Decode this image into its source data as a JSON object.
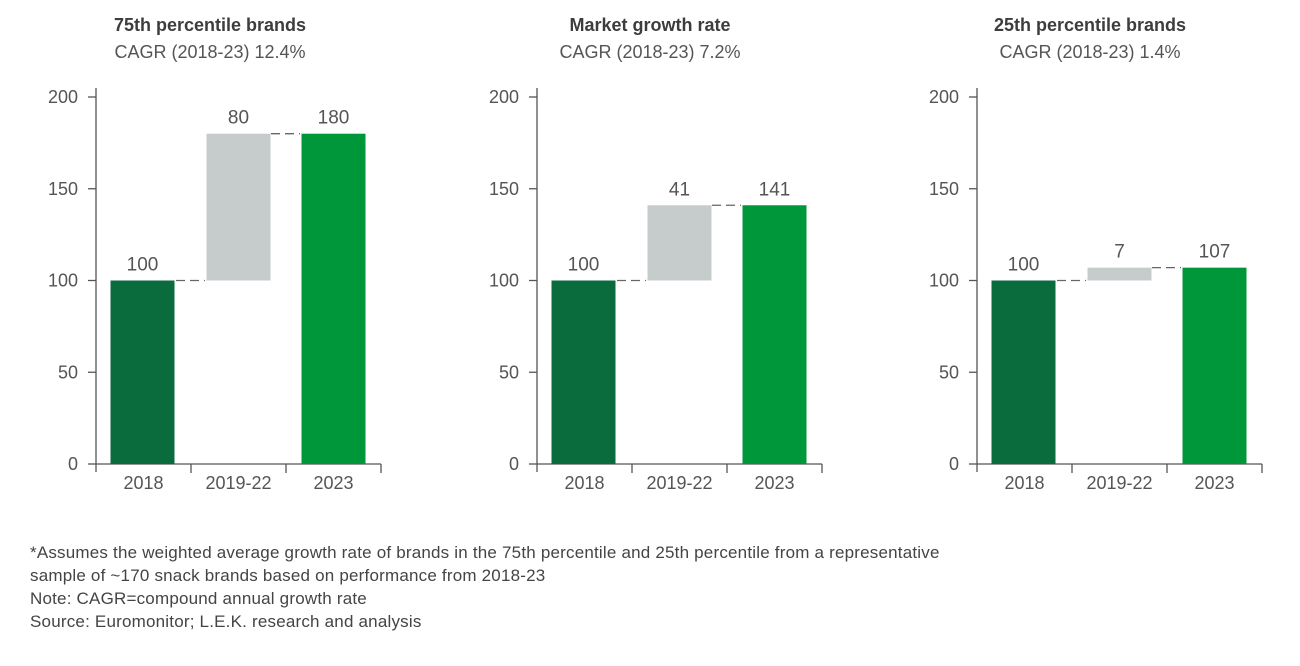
{
  "chart_data": [
    {
      "type": "bar",
      "subtype": "waterfall",
      "title": "75th percentile brands",
      "subtitle": "CAGR (2018-23) 12.4%",
      "categories": [
        "2018",
        "2019-22",
        "2023"
      ],
      "values": [
        100,
        80,
        180
      ],
      "ylim": [
        0,
        200
      ],
      "yticks": [
        0,
        50,
        100,
        150,
        200
      ],
      "grid": false
    },
    {
      "type": "bar",
      "subtype": "waterfall",
      "title": "Market growth rate",
      "subtitle": "CAGR (2018-23) 7.2%",
      "categories": [
        "2018",
        "2019-22",
        "2023"
      ],
      "values": [
        100,
        41,
        141
      ],
      "ylim": [
        0,
        200
      ],
      "yticks": [
        0,
        50,
        100,
        150,
        200
      ],
      "grid": false
    },
    {
      "type": "bar",
      "subtype": "waterfall",
      "title": "25th percentile brands",
      "subtitle": "CAGR (2018-23) 1.4%",
      "categories": [
        "2018",
        "2019-22",
        "2023"
      ],
      "values": [
        100,
        7,
        107
      ],
      "ylim": [
        0,
        200
      ],
      "yticks": [
        0,
        50,
        100,
        150,
        200
      ],
      "grid": false
    }
  ],
  "colors": {
    "start": "#0a6b3c",
    "change": "#c5cccb",
    "end": "#00963a",
    "axis": "#555555"
  },
  "notes": [
    "*Assumes the weighted average growth rate of brands in the 75th percentile and 25th percentile from a representative",
    "sample of ~170 snack brands based on performance from 2018-23",
    "Note: CAGR=compound annual growth rate",
    "Source: Euromonitor; L.E.K. research and analysis"
  ]
}
